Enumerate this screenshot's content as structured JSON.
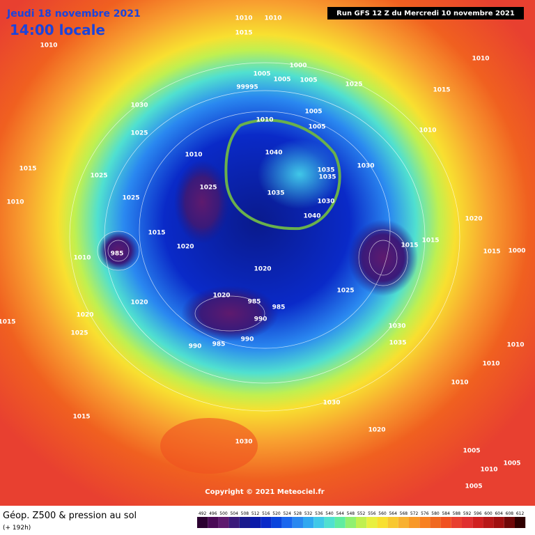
{
  "header": {
    "date": "Jeudi 18 novembre 2021",
    "time": "14:00 locale",
    "run": "Run GFS 12 Z du Mercredi 10 novembre 2021"
  },
  "isobar_labels": [
    "1010",
    "1015",
    "1010",
    "1010",
    "1010",
    "1000",
    "1005",
    "1005",
    "1005",
    "99995",
    "1025",
    "1015",
    "1030",
    "1005",
    "1010",
    "1005",
    "1010",
    "1025",
    "1040",
    "1010",
    "1030",
    "1015",
    "1035",
    "1035",
    "1025",
    "1025",
    "1035",
    "1010",
    "1025",
    "1030",
    "1040",
    "1020",
    "1015",
    "1015",
    "1020",
    "1000",
    "985",
    "1015",
    "1015",
    "1010",
    "1020",
    "1025",
    "1020",
    "1020",
    "985",
    "985",
    "990",
    "1020",
    "1015",
    "1030",
    "1025",
    "990",
    "1035",
    "990",
    "985",
    "1010",
    "1010",
    "1010",
    "1030",
    "1015",
    "1020",
    "1030",
    "1005",
    "1005",
    "1010",
    "1005"
  ],
  "copyright": "Copyright © 2021 Meteociel.fr",
  "footer": {
    "title": "Géop. Z500 & pression au sol",
    "lead": "(+ 192h)"
  },
  "scale": {
    "values": [
      492,
      496,
      500,
      504,
      508,
      512,
      516,
      520,
      524,
      528,
      532,
      536,
      540,
      544,
      548,
      552,
      556,
      560,
      564,
      568,
      572,
      576,
      580,
      584,
      588,
      592,
      596,
      600,
      604,
      608,
      612
    ],
    "colors": [
      "#2b0030",
      "#4a0a55",
      "#5e1a6e",
      "#3a1a7a",
      "#1a1a8c",
      "#0a1aa8",
      "#0a2ac8",
      "#0a44dc",
      "#1a66ee",
      "#2a88f0",
      "#30a8f0",
      "#40c8e8",
      "#50e0d0",
      "#60eca0",
      "#90f070",
      "#c0f050",
      "#e8f040",
      "#f8e030",
      "#f8c830",
      "#f8b030",
      "#f89828",
      "#f88020",
      "#f06820",
      "#f05020",
      "#e84030",
      "#e03030",
      "#d02020",
      "#b81818",
      "#a01010",
      "#700808",
      "#300000"
    ]
  }
}
